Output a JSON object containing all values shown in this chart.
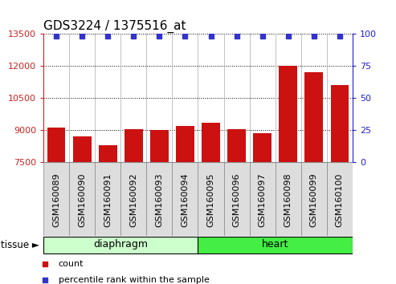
{
  "title": "GDS3224 / 1375516_at",
  "categories": [
    "GSM160089",
    "GSM160090",
    "GSM160091",
    "GSM160092",
    "GSM160093",
    "GSM160094",
    "GSM160095",
    "GSM160096",
    "GSM160097",
    "GSM160098",
    "GSM160099",
    "GSM160100"
  ],
  "bar_values": [
    9100,
    8700,
    8300,
    9050,
    9000,
    9200,
    9350,
    9050,
    8850,
    12020,
    11700,
    11100
  ],
  "bar_color": "#cc1111",
  "bar_baseline": 7500,
  "ylim_left": [
    7500,
    13500
  ],
  "yticks_left": [
    7500,
    9000,
    10500,
    12000,
    13500
  ],
  "ylim_right": [
    0,
    100
  ],
  "yticks_right": [
    0,
    25,
    50,
    75,
    100
  ],
  "blue_color": "#3333cc",
  "tissue_groups": [
    {
      "label": "diaphragm",
      "start": 0,
      "end": 5,
      "color": "#ccffcc"
    },
    {
      "label": "heart",
      "start": 6,
      "end": 11,
      "color": "#44ee44"
    }
  ],
  "tissue_label": "tissue",
  "legend_items": [
    {
      "label": "count",
      "color": "#cc1111"
    },
    {
      "label": "percentile rank within the sample",
      "color": "#3333cc"
    }
  ],
  "left_axis_color": "#cc2222",
  "right_axis_color": "#2222cc",
  "grid_color": "#000000",
  "background_color": "#ffffff",
  "cell_bg_color": "#dddddd",
  "title_fontsize": 11,
  "tick_fontsize": 8,
  "bar_width": 0.7
}
